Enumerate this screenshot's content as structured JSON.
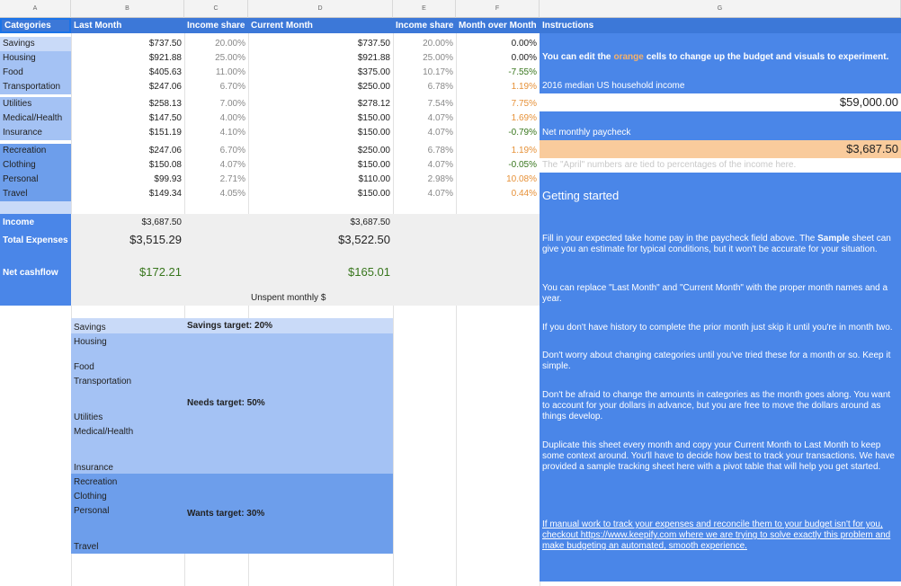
{
  "columns": [
    "A",
    "B",
    "C",
    "D",
    "E",
    "F",
    "G"
  ],
  "headers": {
    "categories": "Categories",
    "last_month": "Last Month",
    "income_share_1": "Income share",
    "current_month": "Current Month",
    "income_share_2": "Income share",
    "mom": "Month over Month",
    "instructions": "Instructions"
  },
  "rows": [
    {
      "cat": "Savings",
      "last": "$737.50",
      "share1": "20.00%",
      "cur": "$737.50",
      "share2": "20.00%",
      "mom": "0.00%"
    },
    {
      "cat": "Housing",
      "last": "$921.88",
      "share1": "25.00%",
      "cur": "$921.88",
      "share2": "25.00%",
      "mom": "0.00%"
    },
    {
      "cat": "Food",
      "last": "$405.63",
      "share1": "11.00%",
      "cur": "$375.00",
      "share2": "10.17%",
      "mom": "-7.55%"
    },
    {
      "cat": "Transportation",
      "last": "$247.06",
      "share1": "6.70%",
      "cur": "$250.00",
      "share2": "6.78%",
      "mom": "1.19%"
    },
    {
      "cat": "Utilities",
      "last": "$258.13",
      "share1": "7.00%",
      "cur": "$278.12",
      "share2": "7.54%",
      "mom": "7.75%"
    },
    {
      "cat": "Medical/Health",
      "last": "$147.50",
      "share1": "4.00%",
      "cur": "$150.00",
      "share2": "4.07%",
      "mom": "1.69%"
    },
    {
      "cat": "Insurance",
      "last": "$151.19",
      "share1": "4.10%",
      "cur": "$150.00",
      "share2": "4.07%",
      "mom": "-0.79%"
    },
    {
      "cat": "Recreation",
      "last": "$247.06",
      "share1": "6.70%",
      "cur": "$250.00",
      "share2": "6.78%",
      "mom": "1.19%"
    },
    {
      "cat": "Clothing",
      "last": "$150.08",
      "share1": "4.07%",
      "cur": "$150.00",
      "share2": "4.07%",
      "mom": "-0.05%"
    },
    {
      "cat": "Personal",
      "last": "$99.93",
      "share1": "2.71%",
      "cur": "$110.00",
      "share2": "2.98%",
      "mom": "10.08%"
    },
    {
      "cat": "Travel",
      "last": "$149.34",
      "share1": "4.05%",
      "cur": "$150.00",
      "share2": "4.07%",
      "mom": "0.44%"
    }
  ],
  "summary": {
    "income_label": "Income",
    "income_last": "$3,687.50",
    "income_cur": "$3,687.50",
    "expenses_label": "Total Expenses",
    "expenses_last": "$3,515.29",
    "expenses_cur": "$3,522.50",
    "cashflow_label": "Net cashflow",
    "cashflow_last": "$172.21",
    "cashflow_cur": "$165.01",
    "unspent_label": "Unspent monthly $"
  },
  "targets": {
    "savings_cats": [
      "Savings",
      "Housing"
    ],
    "needs_cats": [
      "Food",
      "Transportation",
      "Utilities",
      "Medical/Health",
      "Insurance"
    ],
    "wants_cats": [
      "Recreation",
      "Clothing",
      "Personal",
      "Travel"
    ],
    "savings_label": "Savings target: 20%",
    "needs_label": "Needs target: 50%",
    "wants_label": "Wants target: 30%"
  },
  "instructions": {
    "edit_pre": "You can edit the ",
    "edit_orange": "orange",
    "edit_post": " cells to change up the budget and visuals to experiment.",
    "median_label": "2016 median US household income",
    "median_value": "$59,000.00",
    "paycheck_label": "Net monthly paycheck",
    "paycheck_value": "$3,687.50",
    "april_note": "The \"April\" numbers are tied to percentages of the income here.",
    "getting_started": "Getting started",
    "p1_pre": "Fill in your expected take home pay in the paycheck field above. The ",
    "p1_bold": "Sample",
    "p1_post": " sheet can give you an estimate for typical conditions, but it won't be accurate for your situation.",
    "p2": "You can replace \"Last Month\" and \"Current Month\" with the proper month names and a year.",
    "p3": "If you don't have history to complete the prior month just skip it until you're in month two.",
    "p4": "Don't worry about changing categories until you've tried these for a month or so. Keep it simple.",
    "p5": "Don't be afraid to change the amounts in categories as the month goes along. You want to account for your dollars in advance, but you are free to move the dollars around as things develop.",
    "p6": "Duplicate this sheet every month and copy your Current Month to Last Month to keep some context around. You'll have to decide how best to track your transactions. We have provided a sample tracking sheet here with a pivot table that will help you get started.",
    "p7": "If manual work to track your expenses and reconcile them to your budget isn't for you, checkout https://www.keepify.com where we are trying to solve exactly this problem and make budgeting an automated, smooth experience."
  },
  "colors": {
    "header_blue": "#3c78d8",
    "cat_light": "#c9daf8",
    "cat_mid": "#a4c2f4",
    "cat_dark": "#6d9eeb",
    "orange_cell": "#f9cb9c",
    "positive": "#38761d",
    "negative_orange": "#e69138"
  }
}
